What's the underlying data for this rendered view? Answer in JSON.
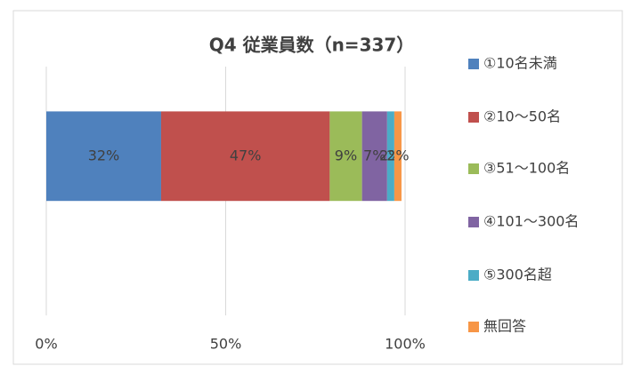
{
  "chart_data": {
    "type": "stacked-bar-horizontal",
    "title": "Q4 従業員数（n=337）",
    "categories": [
      null
    ],
    "series": [
      {
        "name": "①10名未満",
        "color": "#4f81bd",
        "values": [
          32
        ],
        "value_labels": [
          "32%"
        ]
      },
      {
        "name": "②10〜50名",
        "color": "#c0504d",
        "values": [
          47
        ],
        "value_labels": [
          "47%"
        ]
      },
      {
        "name": "③51〜100名",
        "color": "#9bbb59",
        "values": [
          9
        ],
        "value_labels": [
          "9%"
        ]
      },
      {
        "name": "④101〜300名",
        "color": "#8064a2",
        "values": [
          7
        ],
        "value_labels": [
          "7%"
        ]
      },
      {
        "name": "⑤300名超",
        "color": "#4bacc6",
        "values": [
          2
        ],
        "value_labels": [
          "2%"
        ]
      },
      {
        "name": "無回答",
        "color": "#f79646",
        "values": [
          2
        ],
        "value_labels": [
          "2%"
        ]
      }
    ],
    "xlim": [
      0,
      100
    ],
    "xticks": [
      {
        "value": 0,
        "label": "0%"
      },
      {
        "value": 50,
        "label": "50%"
      },
      {
        "value": 100,
        "label": "100%"
      }
    ],
    "grid": true,
    "legend": "right"
  }
}
